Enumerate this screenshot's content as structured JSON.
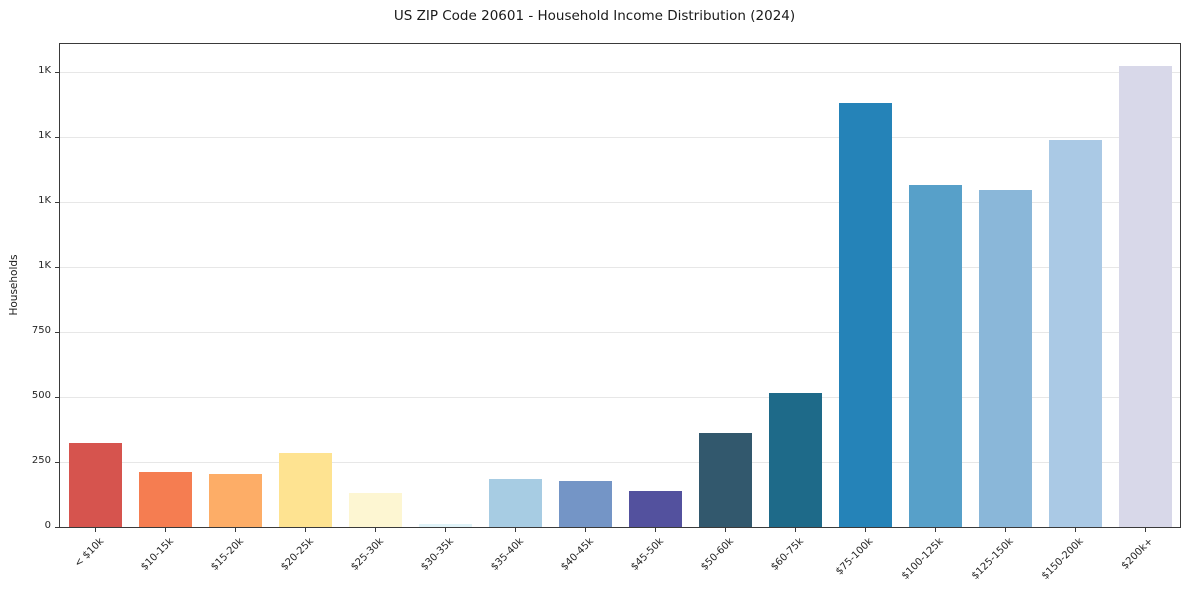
{
  "chart_data": {
    "type": "bar",
    "title": "US ZIP Code 20601 - Household Income Distribution (2024)",
    "xlabel": "",
    "ylabel": "Households",
    "categories": [
      "< $10k",
      "$10-15k",
      "$15-20k",
      "$20-25k",
      "$25-30k",
      "$30-35k",
      "$35-40k",
      "$40-45k",
      "$45-50k",
      "$50-60k",
      "$60-75k",
      "$75-100k",
      "$100-125k",
      "$125-150k",
      "$150-200k",
      "$200k+"
    ],
    "values": [
      323,
      210,
      205,
      285,
      131,
      12,
      185,
      177,
      138,
      362,
      515,
      1631,
      1315,
      1296,
      1488,
      1773
    ],
    "bar_colors": [
      "#d6544e",
      "#f57d51",
      "#fdad67",
      "#fee391",
      "#fdf6d2",
      "#e0f3f8",
      "#a7cce3",
      "#7495c6",
      "#53519e",
      "#32586d",
      "#1e6a89",
      "#2583b8",
      "#57a0c9",
      "#8ab7d9",
      "#aac9e5",
      "#d8d8e9"
    ],
    "ytick_values": [
      0,
      250,
      500,
      750,
      1000,
      1250,
      1500,
      1750
    ],
    "ytick_labels": [
      "0",
      "250",
      "500",
      "750",
      "1K",
      "1K",
      "1K",
      "1K"
    ],
    "ylim": [
      0,
      1858
    ],
    "grid": true,
    "grid_color": "#e7e7e7",
    "legend": "none"
  }
}
